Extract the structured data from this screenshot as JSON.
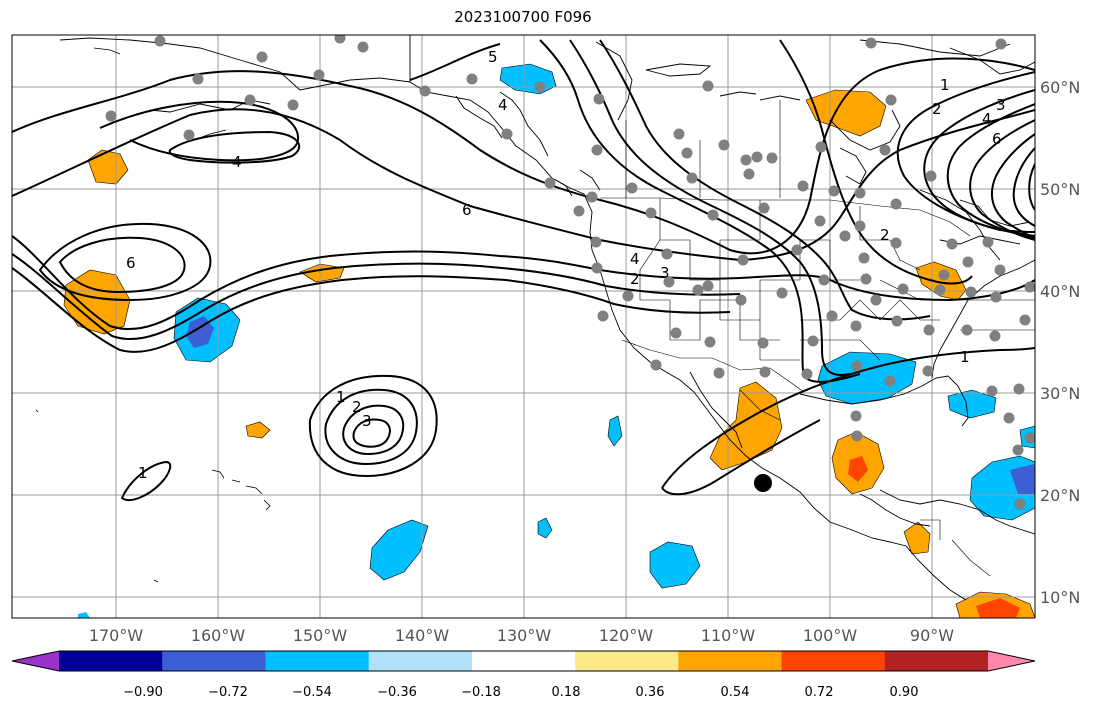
{
  "title": "2023100700 F096",
  "map": {
    "lon_ticks": [
      "170°W",
      "160°W",
      "150°W",
      "140°W",
      "130°W",
      "120°W",
      "110°W",
      "100°W",
      "90°W"
    ],
    "lat_ticks": [
      "60°N",
      "50°N",
      "40°N",
      "30°N",
      "20°N",
      "10°N"
    ],
    "grid": true,
    "contour_labels": [
      "5",
      "4",
      "4",
      "6",
      "6",
      "4",
      "3",
      "2",
      "1",
      "2",
      "3",
      "4",
      "6",
      "2",
      "1",
      "1",
      "2",
      "3",
      "1"
    ]
  },
  "colorbar": {
    "tick_labels": [
      "−0.90",
      "−0.72",
      "−0.54",
      "−0.36",
      "−0.18",
      "0.18",
      "0.36",
      "0.54",
      "0.72",
      "0.90"
    ],
    "colors": [
      "#9933cc",
      "#000099",
      "#3d5fd6",
      "#00bfff",
      "#b0e0fa",
      "#ffffff",
      "#fce98a",
      "#ffa500",
      "#ff4500",
      "#b22222",
      "#ff88aa"
    ]
  }
}
